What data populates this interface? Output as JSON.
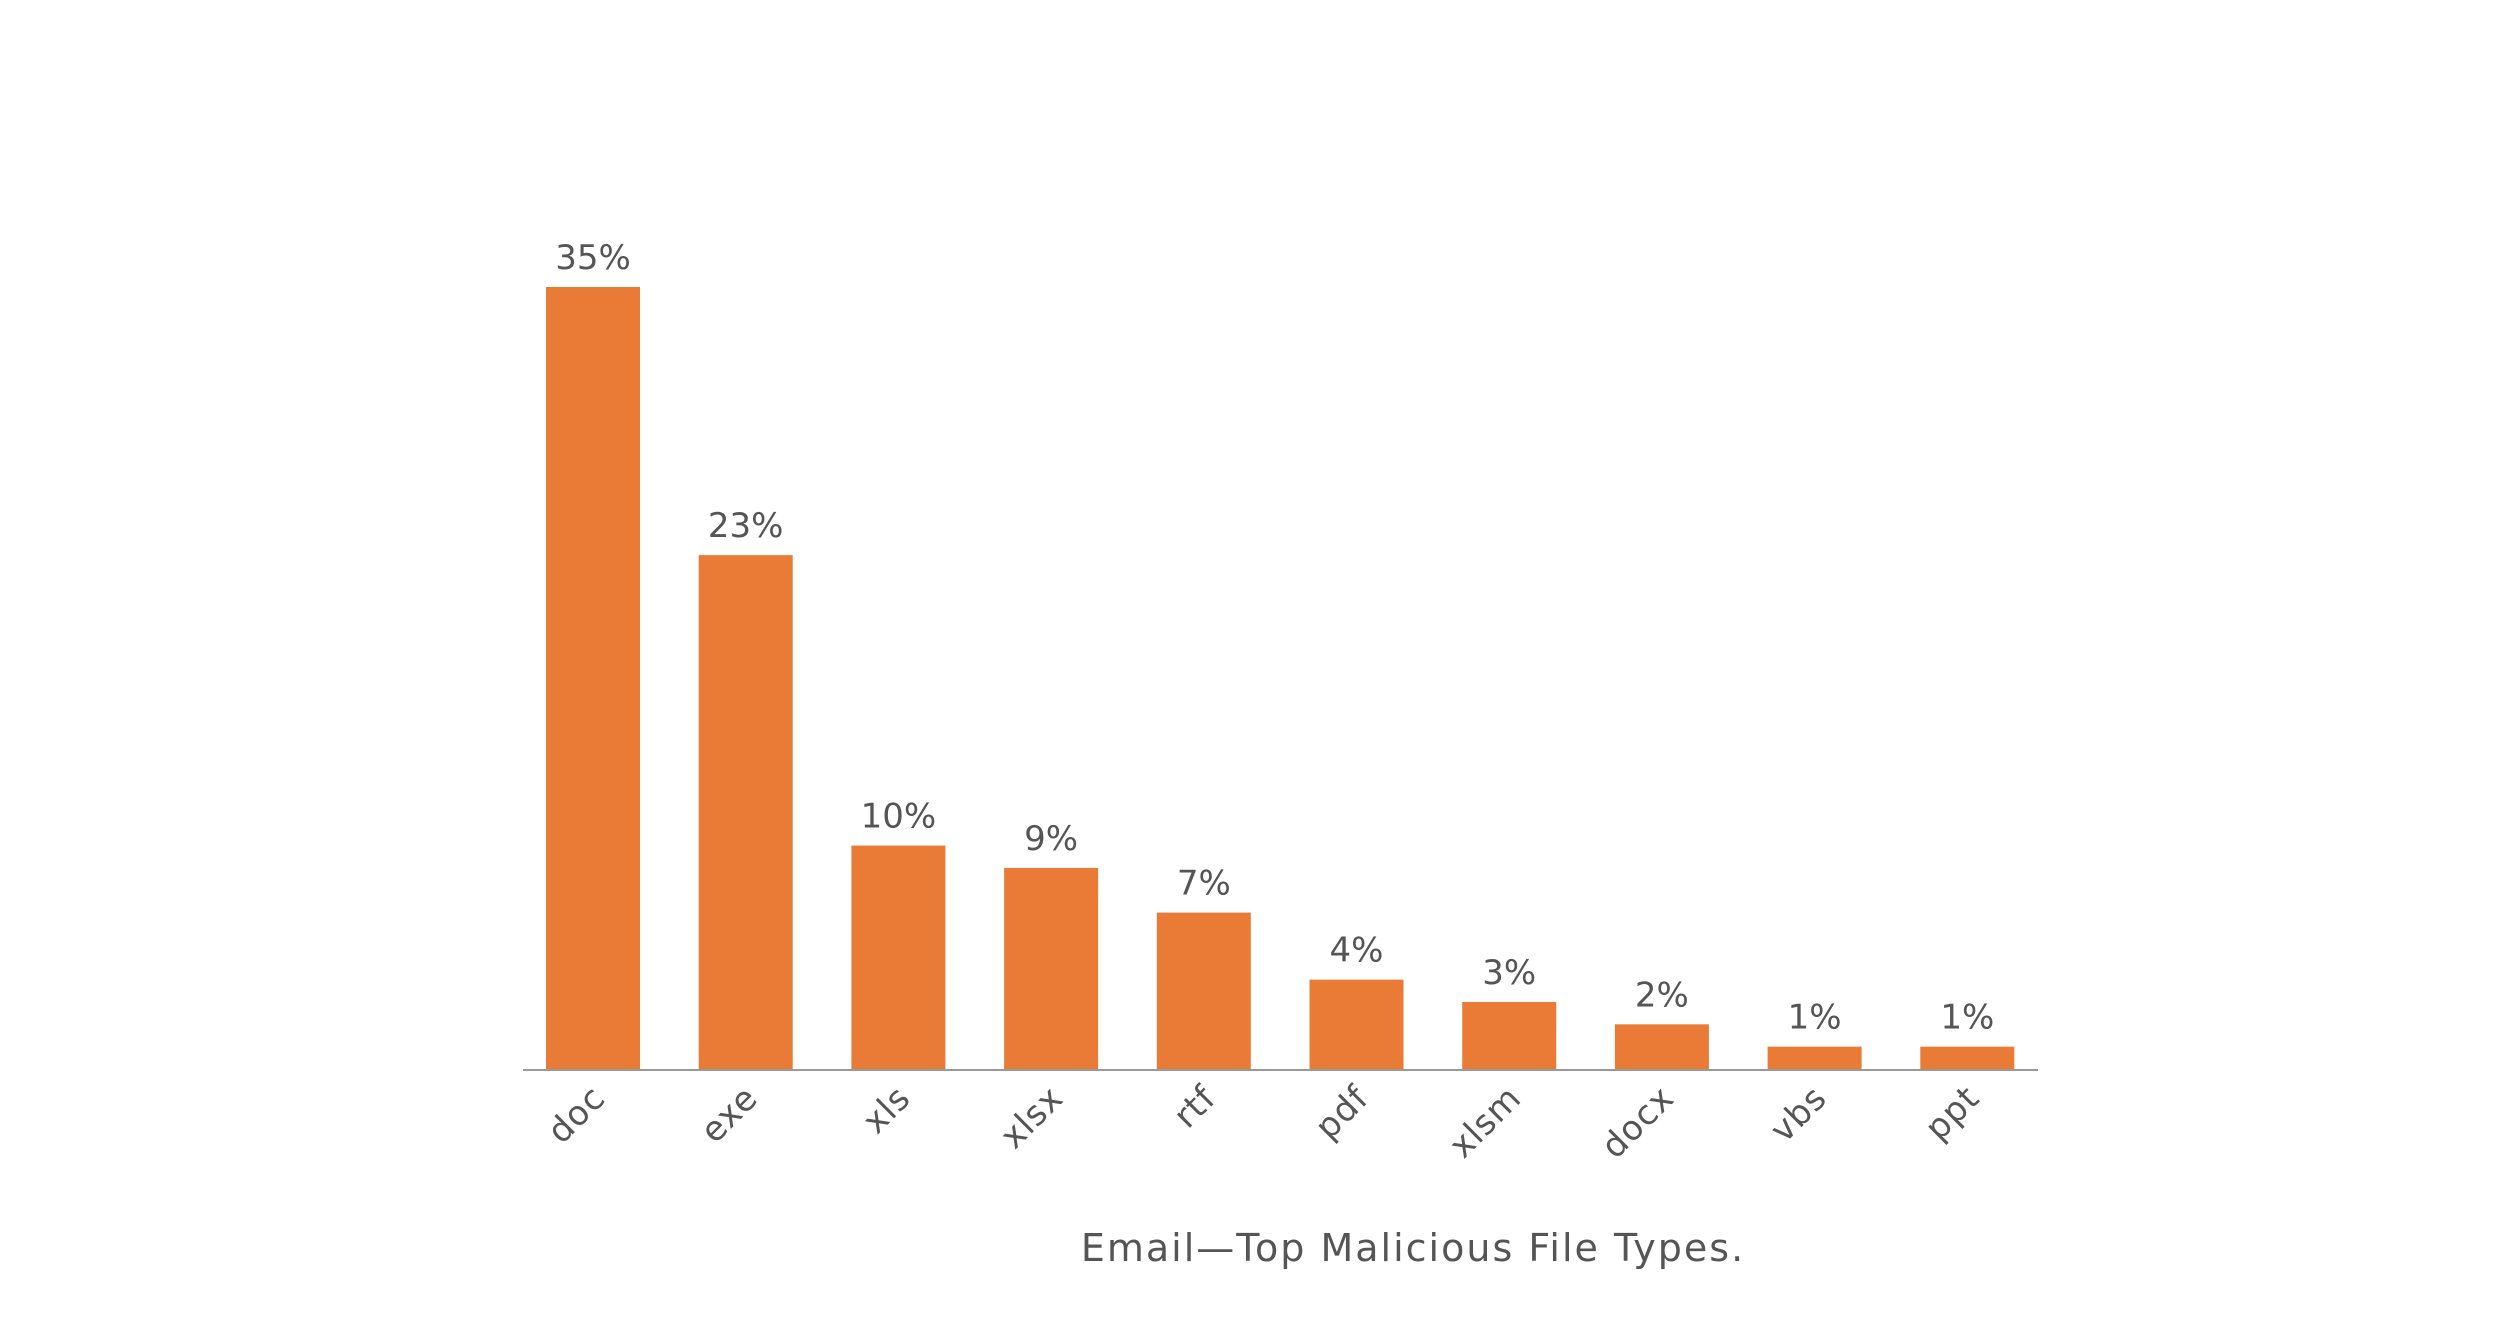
{
  "chart_data": {
    "type": "bar",
    "title": "Email—Top Malicious File Types.",
    "categories": [
      "doc",
      "exe",
      "xls",
      "xlsx",
      "rtf",
      "pdf",
      "xlsm",
      "docx",
      "vbs",
      "ppt"
    ],
    "values": [
      35,
      23,
      10,
      9,
      7,
      4,
      3,
      2,
      1,
      1
    ],
    "value_labels": [
      "35%",
      "23%",
      "10%",
      "9%",
      "7%",
      "4%",
      "3%",
      "2%",
      "1%",
      "1%"
    ],
    "color": "#e97b36"
  }
}
